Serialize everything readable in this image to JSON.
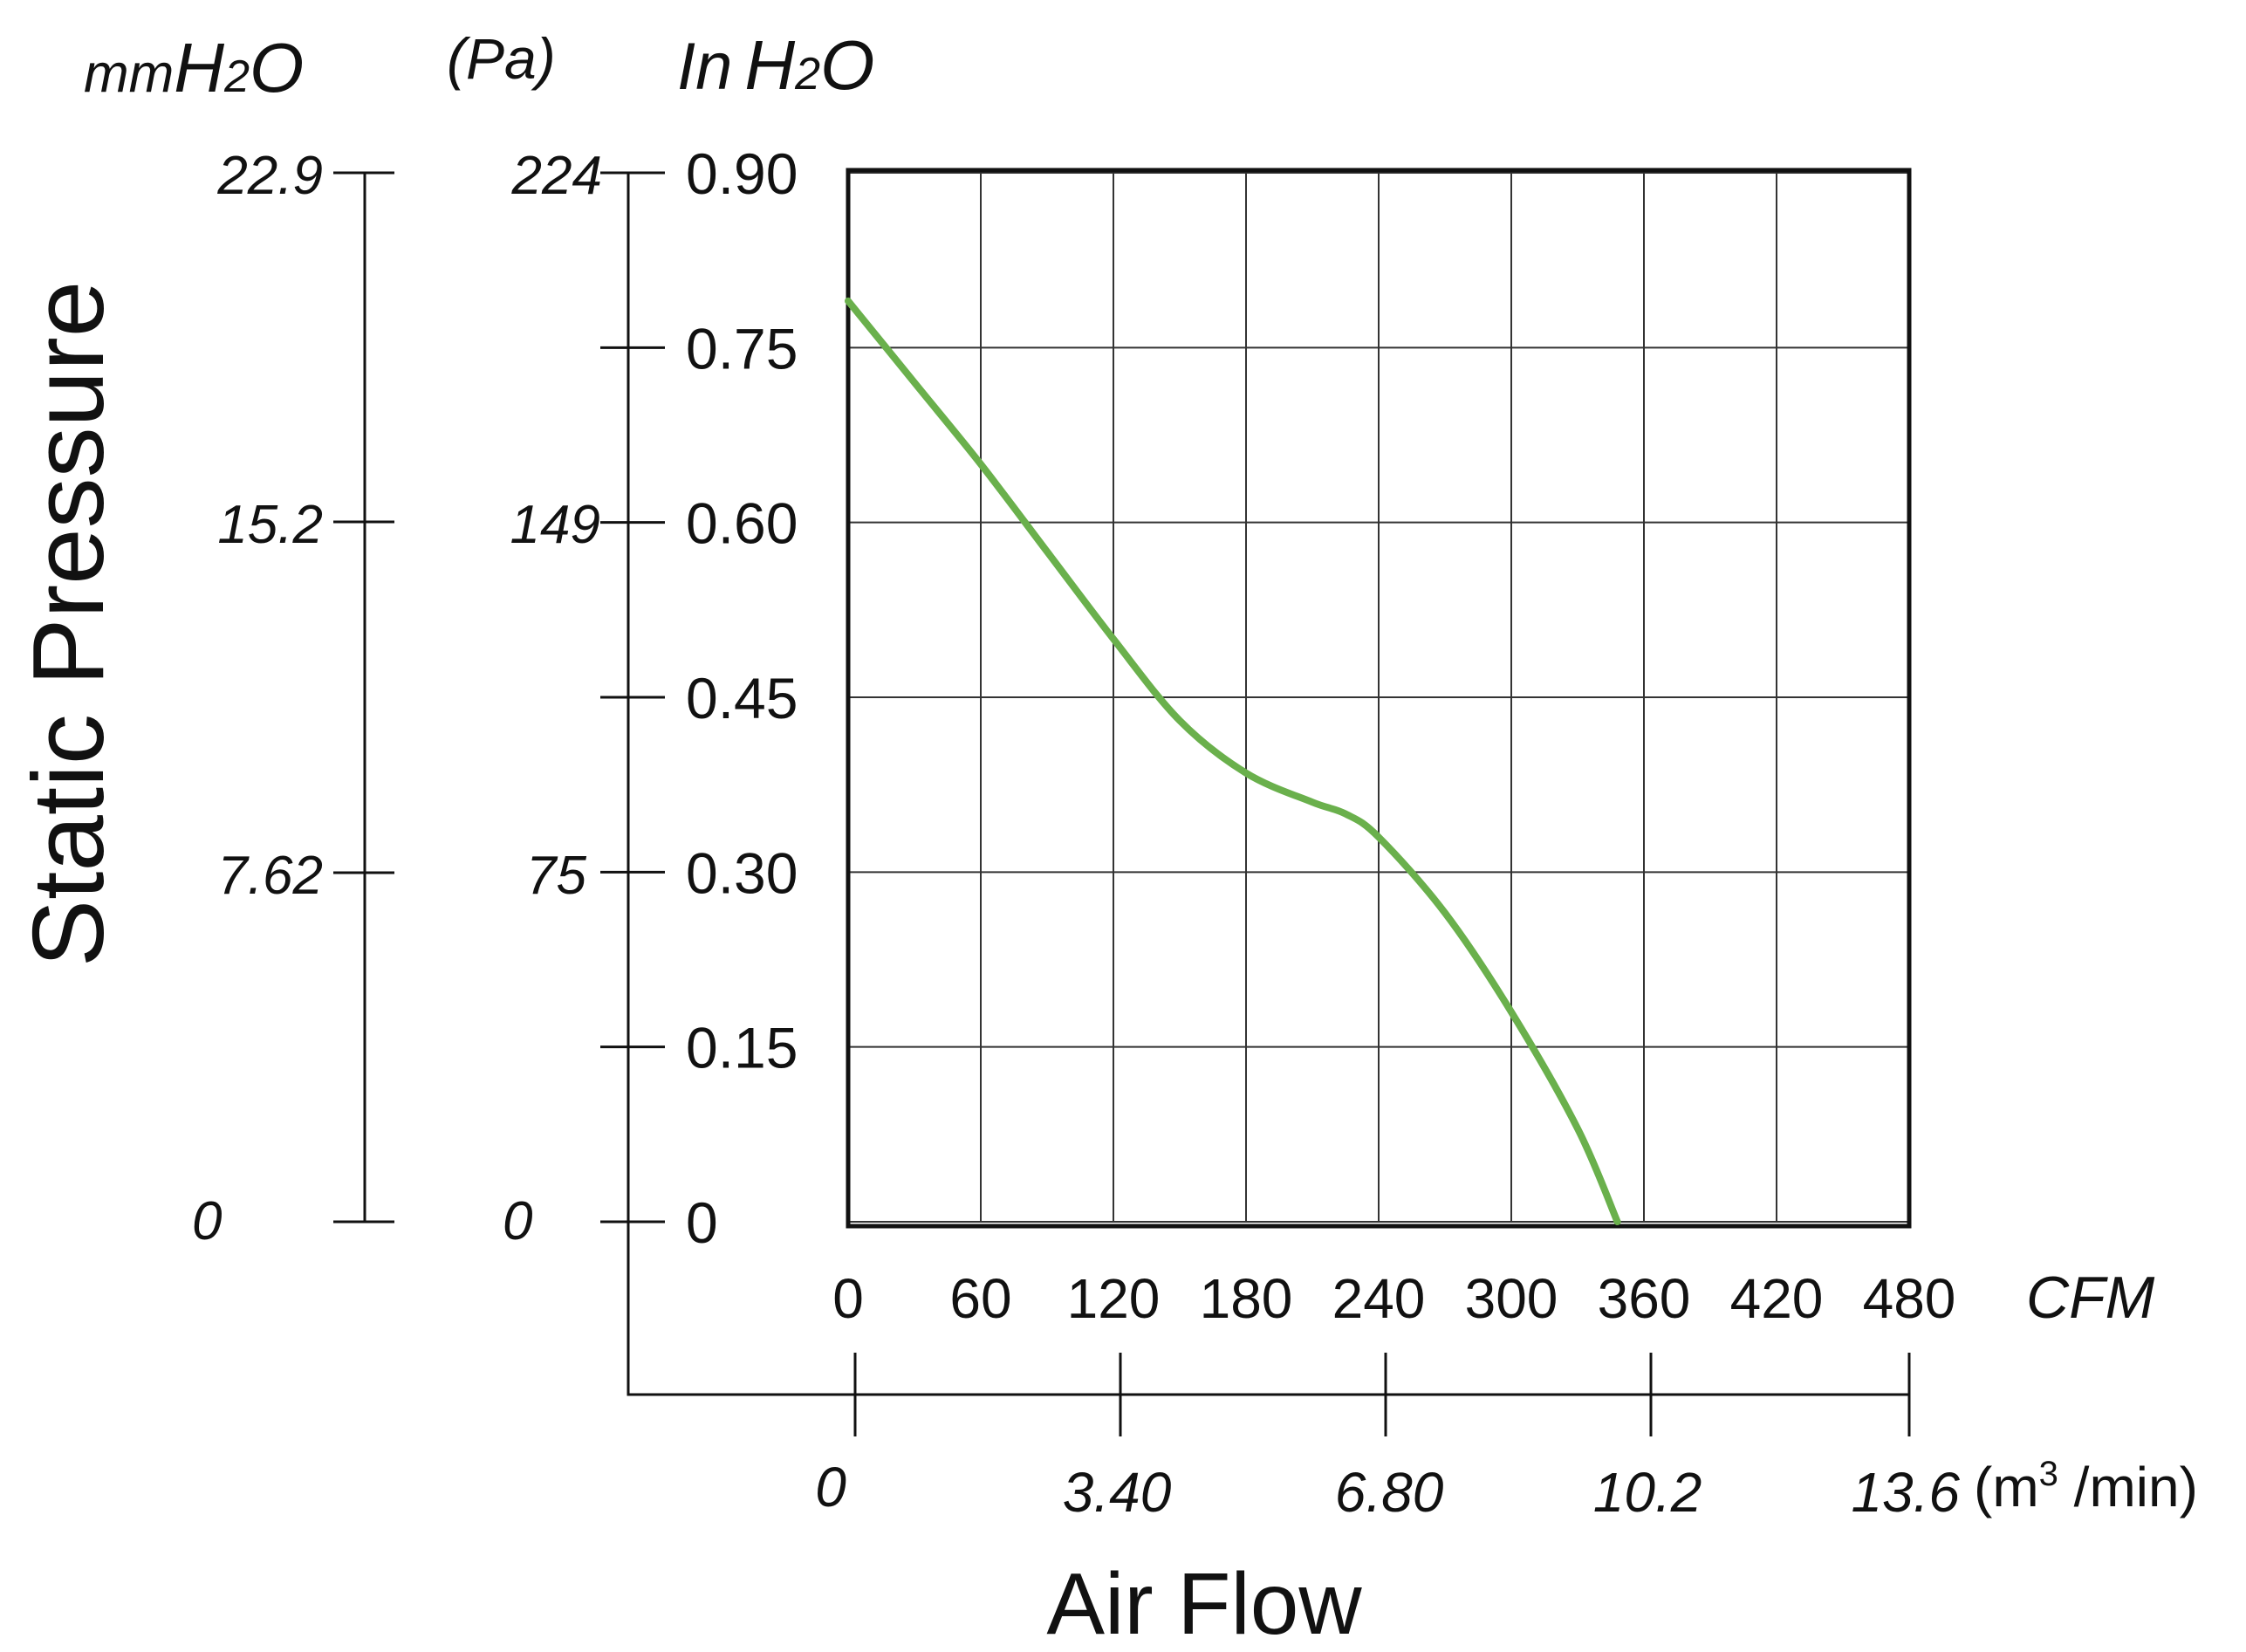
{
  "chart_data": {
    "type": "line",
    "title": "",
    "ylabel": "Static Pressure",
    "xlabel": "Air Flow",
    "x_unit": "CFM",
    "y_unit": "In H2O",
    "xlim": [
      0,
      480
    ],
    "ylim": [
      0,
      0.9
    ],
    "grid": true,
    "x_ticks": [
      "0",
      "60",
      "120",
      "180",
      "240",
      "300",
      "360",
      "420",
      "480"
    ],
    "y_ticks": [
      "0",
      "0.15",
      "0.30",
      "0.45",
      "0.60",
      "0.75",
      "0.90"
    ],
    "secondary_x_axis": {
      "unit_prefix": "(m",
      "unit_superscript": "3",
      "unit_suffix": " /min)",
      "ticks": [
        "0",
        "3.40",
        "6.80",
        "10.2",
        "13.6"
      ]
    },
    "secondary_y_axes": [
      {
        "unit_prefix": "mm",
        "unit_main": "H",
        "unit_sub": "2",
        "unit_end": "O",
        "ticks": [
          "0",
          "7.62",
          "15.2",
          "22.9"
        ]
      },
      {
        "unit": "(Pa)",
        "ticks": [
          "0",
          "75",
          "149",
          "224"
        ]
      }
    ],
    "primary_y_unit_parts": {
      "prefix": "In",
      "main": "H",
      "sub": "2",
      "end": "O"
    },
    "series": [
      {
        "color": "#6ab04c",
        "x": [
          0,
          30,
          60,
          90,
          120,
          150,
          180,
          210,
          225,
          240,
          270,
          300,
          330,
          348
        ],
        "y": [
          0.79,
          0.72,
          0.65,
          0.575,
          0.5,
          0.43,
          0.385,
          0.36,
          0.35,
          0.33,
          0.265,
          0.18,
          0.08,
          0.0
        ]
      }
    ]
  }
}
